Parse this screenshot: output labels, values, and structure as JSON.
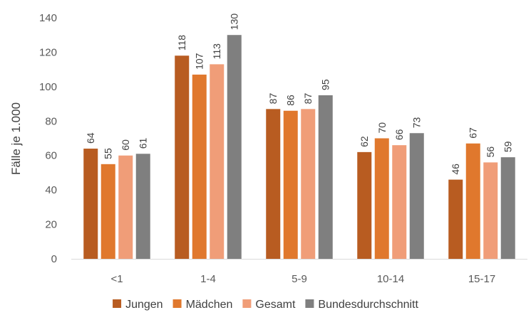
{
  "chart_data": {
    "type": "bar",
    "title": "",
    "xlabel": "",
    "ylabel": "Fälle je 1.000",
    "ylim": [
      0,
      140
    ],
    "yticks": [
      0,
      20,
      40,
      60,
      80,
      100,
      120,
      140
    ],
    "grid": false,
    "legend_position": "bottom",
    "categories": [
      "<1",
      "1-4",
      "5-9",
      "10-14",
      "15-17"
    ],
    "series": [
      {
        "name": "Jungen",
        "color": "#b85c21",
        "values": [
          64,
          118,
          87,
          62,
          46
        ]
      },
      {
        "name": "Mädchen",
        "color": "#e0782d",
        "values": [
          55,
          107,
          86,
          70,
          67
        ]
      },
      {
        "name": "Gesamt",
        "color": "#f09d78",
        "values": [
          60,
          113,
          87,
          66,
          56
        ]
      },
      {
        "name": "Bundesdurchschnitt",
        "color": "#7f7f7f",
        "values": [
          61,
          130,
          95,
          73,
          59
        ]
      }
    ]
  }
}
